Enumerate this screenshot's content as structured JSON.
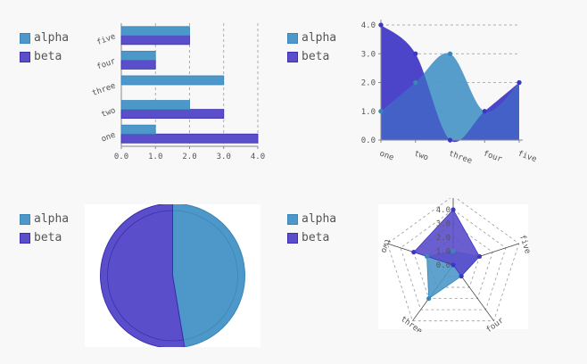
{
  "colors": {
    "alpha_fill": "#4d98c8",
    "alpha_stroke": "#3a86b8",
    "beta_fill": "#5b4ecb",
    "beta_stroke": "#3b2fb0",
    "beta_dark": "#3d37c4",
    "axis": "#888888",
    "grid": "#999999",
    "text": "#555555",
    "panel_bg": "#ffffff"
  },
  "legend": {
    "series": [
      {
        "name": "alpha",
        "color": "#4d98c8"
      },
      {
        "name": "beta",
        "color": "#5b4ecb"
      }
    ]
  },
  "chart_data": [
    {
      "type": "bar",
      "orientation": "horizontal",
      "categories": [
        "one",
        "two",
        "three",
        "four",
        "five"
      ],
      "series": [
        {
          "name": "alpha",
          "values": [
            1,
            2,
            3,
            1,
            2
          ]
        },
        {
          "name": "beta",
          "values": [
            4,
            3,
            0,
            1,
            2
          ]
        }
      ],
      "xlim": [
        0,
        4
      ],
      "xticks": [
        "0.0",
        "1.0",
        "2.0",
        "3.0",
        "4.0"
      ],
      "grid": "vertical dashed",
      "legend": "left"
    },
    {
      "type": "area",
      "categories": [
        "one",
        "two",
        "three",
        "four",
        "five"
      ],
      "series": [
        {
          "name": "alpha",
          "values": [
            1,
            2,
            3,
            1,
            2
          ]
        },
        {
          "name": "beta",
          "values": [
            4,
            3,
            0,
            1,
            2
          ]
        }
      ],
      "ylim": [
        0,
        4
      ],
      "yticks": [
        "0.0",
        "1.0",
        "2.0",
        "3.0",
        "4.0"
      ],
      "grid": "horizontal dashed",
      "smooth": true,
      "legend": "left"
    },
    {
      "type": "pie",
      "series": [
        {
          "name": "alpha",
          "value": 9
        },
        {
          "name": "beta",
          "value": 10
        }
      ],
      "legend": "left"
    },
    {
      "type": "radar",
      "categories": [
        "one",
        "five",
        "four",
        "three",
        "two"
      ],
      "series": [
        {
          "name": "alpha",
          "values": [
            1,
            2,
            1,
            3,
            2
          ]
        },
        {
          "name": "beta",
          "values": [
            4,
            2,
            1,
            0,
            3
          ]
        }
      ],
      "rlim": [
        0,
        4
      ],
      "rticks": [
        "0.0",
        "1.0",
        "2.0",
        "3.0",
        "4.0"
      ],
      "legend": "left"
    }
  ]
}
